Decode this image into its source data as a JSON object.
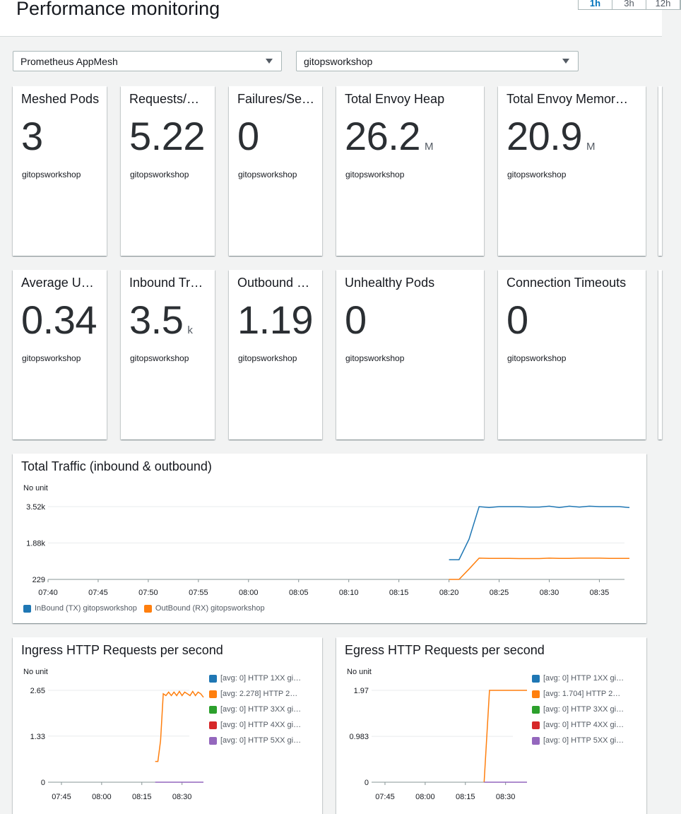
{
  "page": {
    "title": "Performance monitoring"
  },
  "time_range": {
    "options": [
      "1h",
      "3h",
      "12h"
    ],
    "selected": "1h"
  },
  "filters": {
    "source": "Prometheus AppMesh",
    "namespace": "gitopsworkshop"
  },
  "kpis_row1": [
    {
      "title": "Meshed Pods",
      "value": "3",
      "unit": "",
      "sub": "gitopsworkshop"
    },
    {
      "title": "Requests/…",
      "value": "5.22",
      "unit": "",
      "sub": "gitopsworkshop"
    },
    {
      "title": "Failures/Se…",
      "value": "0",
      "unit": "",
      "sub": "gitopsworkshop"
    },
    {
      "title": "Total Envoy Heap",
      "value": "26.2",
      "unit": "M",
      "sub": "gitopsworkshop"
    },
    {
      "title": "Total Envoy Memor…",
      "value": "20.9",
      "unit": "M",
      "sub": "gitopsworkshop"
    }
  ],
  "kpis_row2": [
    {
      "title": "Average U…",
      "value": "0.34",
      "unit": "",
      "sub": "gitopsworkshop"
    },
    {
      "title": "Inbound Tr…",
      "value": "3.5",
      "unit": "k",
      "sub": "gitopsworkshop"
    },
    {
      "title": "Outbound …",
      "value": "1.19",
      "unit": "",
      "sub": "gitopsworkshop"
    },
    {
      "title": "Unhealthy Pods",
      "value": "0",
      "unit": "",
      "sub": "gitopsworkshop"
    },
    {
      "title": "Connection Timeouts",
      "value": "0",
      "unit": "",
      "sub": "gitopsworkshop"
    }
  ],
  "colors": {
    "blue": "#1f77b4",
    "orange": "#ff7f0e",
    "green": "#2ca02c",
    "red": "#d62728",
    "purple": "#9467bd",
    "grid": "#e9ebed"
  },
  "chart_data": [
    {
      "type": "line",
      "title": "Total Traffic (inbound & outbound)",
      "unit_label": "No unit",
      "ylim": [
        229,
        3520
      ],
      "y_ticks": [
        "3.52k",
        "1.88k",
        "229"
      ],
      "y_tick_values": [
        3520,
        1880,
        229
      ],
      "x_ticks": [
        "07:40",
        "07:45",
        "07:50",
        "07:55",
        "08:00",
        "08:05",
        "08:10",
        "08:15",
        "08:20",
        "08:25",
        "08:30",
        "08:35"
      ],
      "x_range": [
        "07:40",
        "08:38"
      ],
      "legend": "bottom",
      "series": [
        {
          "name": "InBound (TX) gitopsworkshop",
          "color": "blue",
          "x": [
            "08:20",
            "08:21",
            "08:22",
            "08:23",
            "08:24",
            "08:25",
            "08:26",
            "08:27",
            "08:28",
            "08:29",
            "08:30",
            "08:31",
            "08:32",
            "08:33",
            "08:34",
            "08:35",
            "08:36",
            "08:37",
            "08:38"
          ],
          "values": [
            1120,
            1120,
            2050,
            3520,
            3480,
            3520,
            3520,
            3520,
            3500,
            3500,
            3540,
            3480,
            3540,
            3500,
            3540,
            3520,
            3520,
            3520,
            3480
          ]
        },
        {
          "name": "OutBound (RX) gitopsworkshop",
          "color": "orange",
          "x": [
            "08:20",
            "08:21",
            "08:22",
            "08:23",
            "08:24",
            "08:25",
            "08:26",
            "08:27",
            "08:28",
            "08:29",
            "08:30",
            "08:31",
            "08:32",
            "08:33",
            "08:34",
            "08:35",
            "08:36",
            "08:37",
            "08:38"
          ],
          "values": [
            229,
            229,
            700,
            1190,
            1180,
            1180,
            1180,
            1170,
            1170,
            1170,
            1190,
            1180,
            1180,
            1190,
            1190,
            1190,
            1180,
            1180,
            1180
          ]
        }
      ]
    },
    {
      "type": "line",
      "title": "Ingress HTTP Requests per second",
      "unit_label": "No unit",
      "ylim": [
        0,
        2.65
      ],
      "y_ticks": [
        "2.65",
        "1.33",
        "0"
      ],
      "y_tick_values": [
        2.65,
        1.33,
        0
      ],
      "x_ticks": [
        "07:45",
        "08:00",
        "08:15",
        "08:30"
      ],
      "x_range": [
        "07:40",
        "08:38"
      ],
      "legend": "right",
      "series": [
        {
          "name": "[avg: 0] HTTP 1XX gi…",
          "color": "blue",
          "x": [],
          "values": []
        },
        {
          "name": "[avg: 2.278] HTTP 2…",
          "color": "orange",
          "x": [
            "08:20",
            "08:21",
            "08:22",
            "08:23",
            "08:24",
            "08:25",
            "08:26",
            "08:27",
            "08:28",
            "08:29",
            "08:30",
            "08:31",
            "08:32",
            "08:33",
            "08:34",
            "08:35",
            "08:36",
            "08:37",
            "08:38"
          ],
          "values": [
            0.6,
            0.6,
            1.2,
            2.55,
            2.5,
            2.6,
            2.5,
            2.6,
            2.5,
            2.62,
            2.5,
            2.6,
            2.55,
            2.5,
            2.62,
            2.5,
            2.6,
            2.55,
            2.45
          ]
        },
        {
          "name": "[avg: 0] HTTP 3XX gi…",
          "color": "green",
          "x": [],
          "values": []
        },
        {
          "name": "[avg: 0] HTTP 4XX gi…",
          "color": "red",
          "x": [],
          "values": []
        },
        {
          "name": "[avg: 0] HTTP 5XX gi…",
          "color": "purple",
          "x": [
            "08:20",
            "08:38"
          ],
          "values": [
            0,
            0
          ]
        }
      ]
    },
    {
      "type": "line",
      "title": "Egress HTTP Requests per second",
      "unit_label": "No unit",
      "ylim": [
        0,
        1.97
      ],
      "y_ticks": [
        "1.97",
        "0.983",
        "0"
      ],
      "y_tick_values": [
        1.97,
        0.983,
        0
      ],
      "x_ticks": [
        "07:45",
        "08:00",
        "08:15",
        "08:30"
      ],
      "x_range": [
        "07:40",
        "08:38"
      ],
      "legend": "right",
      "series": [
        {
          "name": "[avg: 0] HTTP 1XX gi…",
          "color": "blue",
          "x": [],
          "values": []
        },
        {
          "name": "[avg: 1.704] HTTP 2…",
          "color": "orange",
          "x": [
            "08:22",
            "08:24",
            "08:26",
            "08:30",
            "08:35",
            "08:38"
          ],
          "values": [
            0,
            1.97,
            1.97,
            1.97,
            1.97,
            1.97
          ]
        },
        {
          "name": "[avg: 0] HTTP 3XX gi…",
          "color": "green",
          "x": [],
          "values": []
        },
        {
          "name": "[avg: 0] HTTP 4XX gi…",
          "color": "red",
          "x": [],
          "values": []
        },
        {
          "name": "[avg: 0] HTTP 5XX gi…",
          "color": "purple",
          "x": [
            "08:22",
            "08:38"
          ],
          "values": [
            0,
            0
          ]
        }
      ]
    }
  ]
}
